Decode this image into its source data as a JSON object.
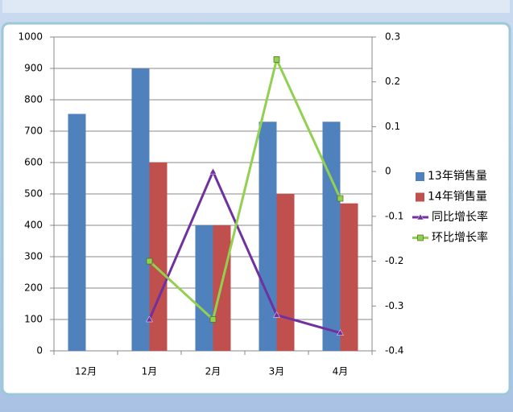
{
  "chart_data": {
    "type": "bar-line",
    "categories": [
      "12月",
      "1月",
      "2月",
      "3月",
      "4月"
    ],
    "series": [
      {
        "name": "13年销售量",
        "type": "bar",
        "color": "#4f81bd",
        "values": [
          755,
          900,
          400,
          730,
          730
        ]
      },
      {
        "name": "14年销售量",
        "type": "bar",
        "color": "#c0504d",
        "values": [
          null,
          600,
          400,
          500,
          470
        ]
      },
      {
        "name": "同比增长率",
        "type": "line",
        "axis": "y2",
        "marker": "triangle",
        "color": "#7030a0",
        "values": [
          null,
          -0.33,
          0,
          -0.32,
          -0.36
        ]
      },
      {
        "name": "环比增长率",
        "type": "line",
        "axis": "y2",
        "marker": "square",
        "color": "#92d050",
        "values": [
          null,
          -0.2,
          -0.33,
          0.25,
          -0.06
        ]
      }
    ],
    "ylim": [
      0,
      1000
    ],
    "yticks": [
      0,
      100,
      200,
      300,
      400,
      500,
      600,
      700,
      800,
      900,
      1000
    ],
    "y2lim": [
      -0.4,
      0.3
    ],
    "y2ticks": [
      -0.4,
      -0.3,
      -0.2,
      -0.1,
      0,
      0.1,
      0.2,
      0.3
    ],
    "grid": true,
    "legend": "right"
  }
}
